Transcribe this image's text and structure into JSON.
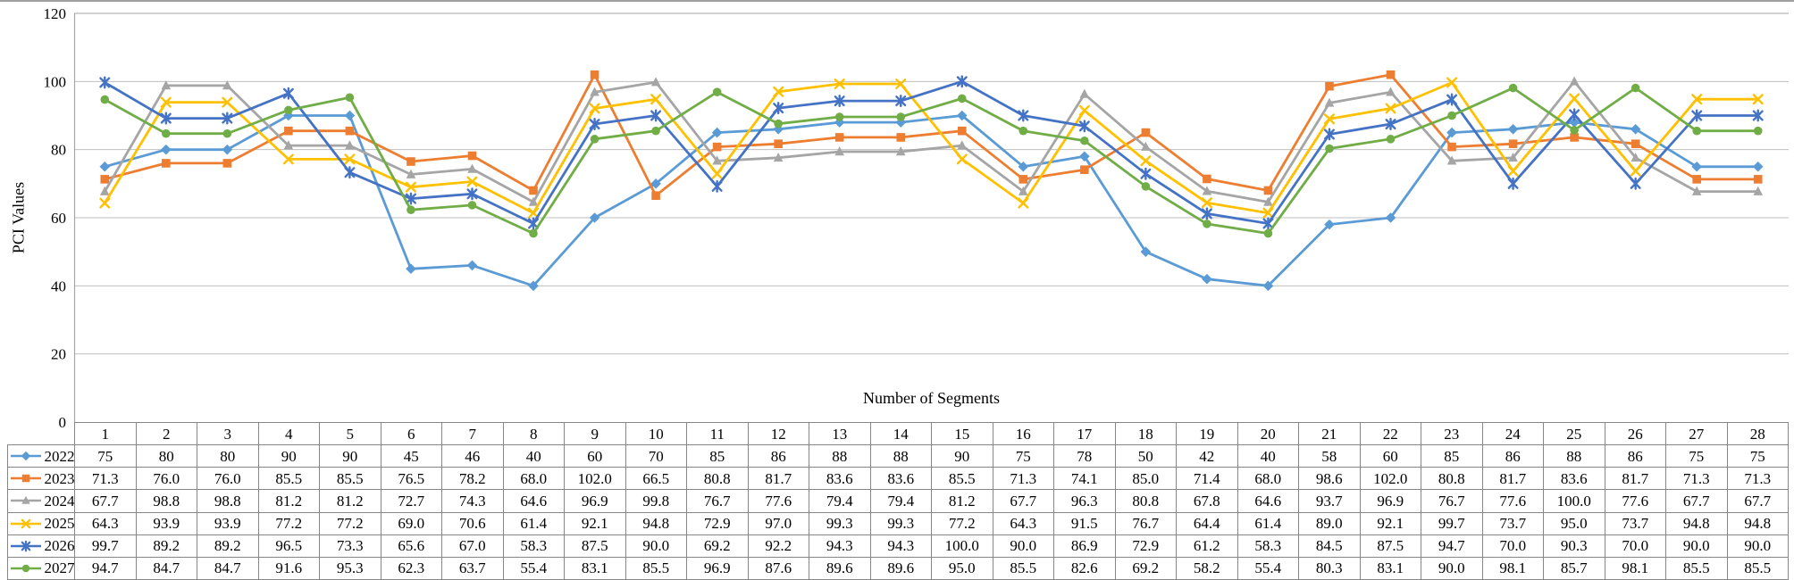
{
  "chart_data": {
    "type": "line",
    "title": "",
    "xlabel": "Number of Segments",
    "ylabel": "PCI Values",
    "ylim": [
      0,
      120
    ],
    "y_ticks": [
      0,
      20,
      40,
      60,
      80,
      100,
      120
    ],
    "grid": true,
    "legend_position": "table-left",
    "colors": {
      "gridline": "#BFBFBF",
      "plot_border": "#A6A6A6",
      "chart_top_border": "#808080",
      "table_border": "#868686",
      "text": "#000000",
      "background": "#FFFFFF"
    },
    "categories": [
      "1",
      "2",
      "3",
      "4",
      "5",
      "6",
      "7",
      "8",
      "9",
      "10",
      "11",
      "12",
      "13",
      "14",
      "15",
      "16",
      "17",
      "18",
      "19",
      "20",
      "21",
      "22",
      "23",
      "24",
      "25",
      "26",
      "27",
      "28"
    ],
    "series": [
      {
        "name": "2022",
        "color": "#5B9BD5",
        "marker": "diamond",
        "decimals": 0,
        "values": [
          75,
          80,
          80,
          90,
          90,
          45,
          46,
          40,
          60,
          70,
          85,
          86,
          88,
          88,
          90,
          75,
          78,
          50,
          42,
          40,
          58,
          60,
          85,
          86,
          88,
          86,
          75,
          75
        ]
      },
      {
        "name": "2023",
        "color": "#ED7D31",
        "marker": "square",
        "decimals": 1,
        "values": [
          71.3,
          76.0,
          76.0,
          85.5,
          85.5,
          76.5,
          78.2,
          68.0,
          102.0,
          66.5,
          80.8,
          81.7,
          83.6,
          83.6,
          85.5,
          71.3,
          74.1,
          85.0,
          71.4,
          68.0,
          98.6,
          102.0,
          80.8,
          81.7,
          83.6,
          81.7,
          71.3,
          71.3
        ]
      },
      {
        "name": "2024",
        "color": "#A5A5A5",
        "marker": "triangle",
        "decimals": 1,
        "values": [
          67.7,
          98.8,
          98.8,
          81.2,
          81.2,
          72.7,
          74.3,
          64.6,
          96.9,
          99.8,
          76.7,
          77.6,
          79.4,
          79.4,
          81.2,
          67.7,
          96.3,
          80.8,
          67.8,
          64.6,
          93.7,
          96.9,
          76.7,
          77.6,
          100.0,
          77.6,
          67.7,
          67.7
        ]
      },
      {
        "name": "2025",
        "color": "#FFC000",
        "marker": "x",
        "decimals": 1,
        "values": [
          64.3,
          93.9,
          93.9,
          77.2,
          77.2,
          69.0,
          70.6,
          61.4,
          92.1,
          94.8,
          72.9,
          97.0,
          99.3,
          99.3,
          77.2,
          64.3,
          91.5,
          76.7,
          64.4,
          61.4,
          89.0,
          92.1,
          99.7,
          73.7,
          95.0,
          73.7,
          94.8,
          94.8
        ]
      },
      {
        "name": "2026",
        "color": "#4472C4",
        "marker": "star",
        "decimals": 1,
        "values": [
          99.7,
          89.2,
          89.2,
          96.5,
          73.3,
          65.6,
          67.0,
          58.3,
          87.5,
          90.0,
          69.2,
          92.2,
          94.3,
          94.3,
          100.0,
          90.0,
          86.9,
          72.9,
          61.2,
          58.3,
          84.5,
          87.5,
          94.7,
          70.0,
          90.3,
          70.0,
          90.0,
          90.0
        ]
      },
      {
        "name": "2027",
        "color": "#70AD47",
        "marker": "circle",
        "decimals": 1,
        "values": [
          94.7,
          84.7,
          84.7,
          91.6,
          95.3,
          62.3,
          63.7,
          55.4,
          83.1,
          85.5,
          96.9,
          87.6,
          89.6,
          89.6,
          95.0,
          85.5,
          82.6,
          69.2,
          58.2,
          55.4,
          80.3,
          83.1,
          90.0,
          98.1,
          85.7,
          98.1,
          85.5,
          85.5
        ]
      }
    ]
  }
}
